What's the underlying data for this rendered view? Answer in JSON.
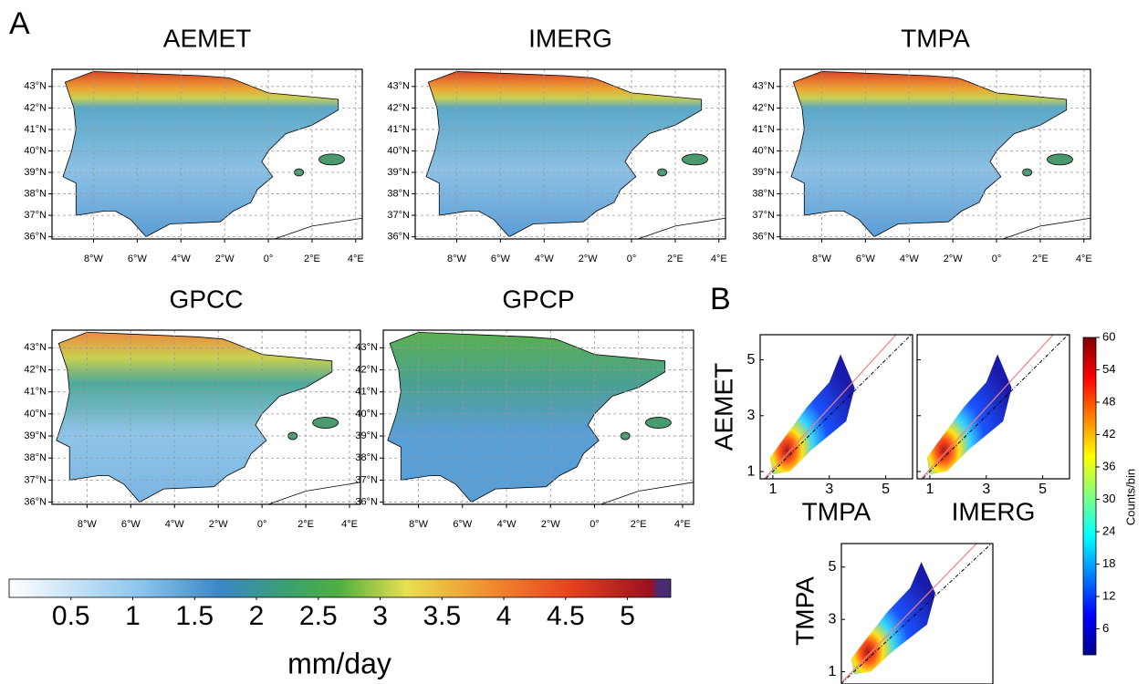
{
  "panel_labels": [
    "A",
    "B"
  ],
  "maps": [
    {
      "title": "AEMET"
    },
    {
      "title": "IMERG"
    },
    {
      "title": "TMPA"
    },
    {
      "title": "GPCC"
    },
    {
      "title": "GPCP"
    }
  ],
  "map_axes": {
    "lat_ticks": [
      {
        "value": 43,
        "label": "43°N"
      },
      {
        "value": 42,
        "label": "42°N"
      },
      {
        "value": 41,
        "label": "41°N"
      },
      {
        "value": 40,
        "label": "40°N"
      },
      {
        "value": 39,
        "label": "39°N"
      },
      {
        "value": 38,
        "label": "38°N"
      },
      {
        "value": 37,
        "label": "37°N"
      },
      {
        "value": 36,
        "label": "36°N"
      }
    ],
    "lon_ticks": [
      {
        "value": -8,
        "label": "8°W"
      },
      {
        "value": -6,
        "label": "6°W"
      },
      {
        "value": -4,
        "label": "4°W"
      },
      {
        "value": -2,
        "label": "2°W"
      },
      {
        "value": 0,
        "label": "0°"
      },
      {
        "value": 2,
        "label": "2°E"
      },
      {
        "value": 4,
        "label": "4°E"
      }
    ]
  },
  "colorbar": {
    "lim": [
      0,
      5.35
    ],
    "ticks": [
      0.5,
      1,
      1.5,
      2,
      2.5,
      3,
      3.5,
      4,
      4.5,
      5
    ],
    "label": "mm/day"
  },
  "density": {
    "panels": [
      {
        "x_label": "TMPA",
        "y_label": "AEMET"
      },
      {
        "x_label": "IMERG"
      },
      {
        "y_label": "TMPA"
      }
    ],
    "xlim": [
      0.55,
      5.95
    ],
    "ylim": [
      0.74,
      5.9
    ],
    "ticks": [
      1,
      3,
      5
    ]
  },
  "counts_colorbar": {
    "lim": [
      0,
      60
    ],
    "ticks": [
      6,
      12,
      18,
      24,
      30,
      36,
      42,
      48,
      54,
      60
    ],
    "label": "Counts/bin"
  }
}
